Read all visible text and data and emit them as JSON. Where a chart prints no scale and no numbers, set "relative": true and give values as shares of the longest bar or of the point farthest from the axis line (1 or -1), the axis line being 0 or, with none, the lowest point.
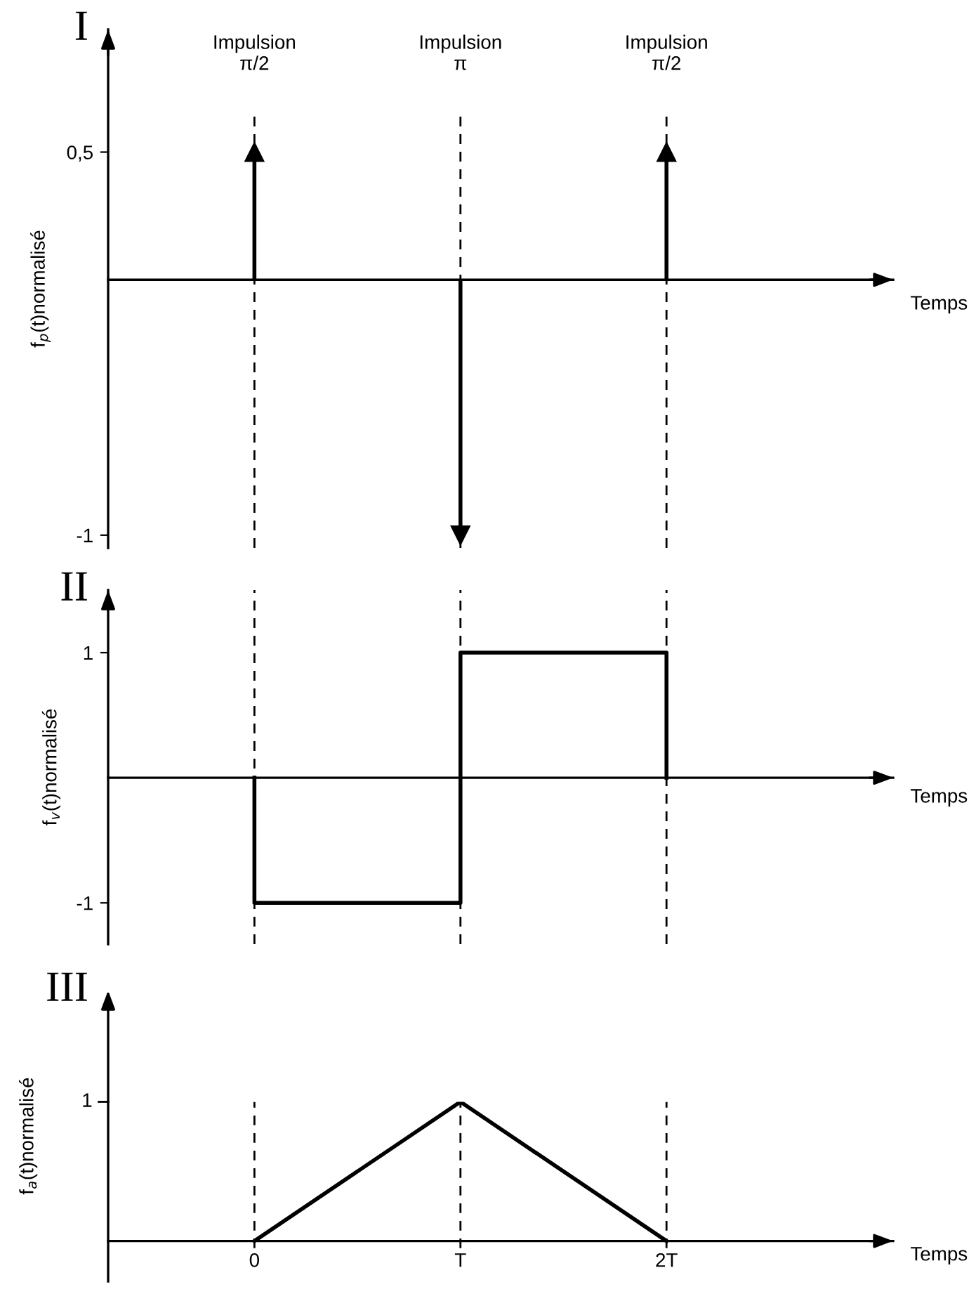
{
  "chart_data": [
    {
      "type": "lollipop",
      "title": "I",
      "ylabel": "f$_{p}$(t)normalisé",
      "xlabel": "Temps",
      "x": [
        0,
        1,
        2
      ],
      "values": [
        0.5,
        -1,
        0.5
      ],
      "color": "#000000",
      "marker": "triangle",
      "xlim": [
        -0.71,
        3.1
      ],
      "ylim": [
        -1.05,
        0.98
      ],
      "yticks": [
        {
          "value": 0.5,
          "label": "0,5"
        },
        -1
      ],
      "tick_labels": "y",
      "ref_lines": [
        {
          "axis": "x",
          "value": 0,
          "label": "Impulsion\nπ/2",
          "line_style": "dashed",
          "color": "#000000"
        },
        {
          "axis": "x",
          "value": 1,
          "label": "Impulsion\nπ",
          "line_style": "dashed",
          "color": "#000000"
        },
        {
          "axis": "x",
          "value": 2,
          "label": "Impulsion\nπ/2",
          "line_style": "dashed",
          "color": "#000000"
        }
      ]
    },
    {
      "type": "line",
      "title": "II",
      "ylabel": "f$_{v}$(t)normalisé",
      "xlabel": "Temps",
      "x": [
        0,
        0,
        1,
        1,
        2,
        2
      ],
      "values": [
        0,
        -1,
        -1,
        1,
        1,
        0
      ],
      "color": "#000000",
      "marker": "none",
      "line_style": "solid",
      "xlim": [
        -0.71,
        3.1
      ],
      "ylim": [
        -1.33,
        1.5
      ],
      "yticks": [
        1,
        -1
      ],
      "tick_labels": "y",
      "ref_lines": [
        {
          "axis": "x",
          "value": 0,
          "line_style": "dashed",
          "color": "#000000"
        },
        {
          "axis": "x",
          "value": 1,
          "line_style": "dashed",
          "color": "#000000"
        },
        {
          "axis": "x",
          "value": 2,
          "line_style": "dashed",
          "color": "#000000"
        }
      ]
    },
    {
      "type": "line",
      "title": "III",
      "ylabel": "f$_{a}$(t)normalisé",
      "xlabel": "Temps",
      "x": [
        0,
        1,
        2
      ],
      "values": [
        0,
        1,
        0
      ],
      "color": "#000000",
      "marker": "none",
      "line_style": "solid",
      "xlim": [
        -0.71,
        3.1
      ],
      "relative": true,
      "annotations": [
        "1"
      ],
      "xticks": [
        {
          "value": 0,
          "label": "0"
        },
        {
          "value": 1,
          "label": "T"
        },
        {
          "value": 2,
          "label": "2T"
        }
      ],
      "ref_lines": [
        {
          "axis": "x",
          "value": 0,
          "line_style": "dashed",
          "color": "#000000"
        },
        {
          "axis": "x",
          "value": 1,
          "line_style": "dashed",
          "color": "#000000"
        },
        {
          "axis": "x",
          "value": 2,
          "line_style": "dashed",
          "color": "#000000"
        }
      ]
    }
  ]
}
